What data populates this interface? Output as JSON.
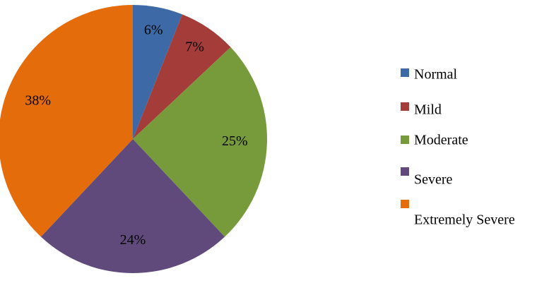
{
  "chart_data": {
    "type": "pie",
    "categories": [
      "Normal",
      "Mild",
      "Moderate",
      "Severe",
      "Extremely Severe"
    ],
    "values": [
      6,
      7,
      25,
      24,
      38
    ],
    "value_labels": [
      "6%",
      "7%",
      "25%",
      "24%",
      "38%"
    ],
    "colors": [
      "#3d6aa6",
      "#a43c3a",
      "#779b3b",
      "#604a7c",
      "#e46c0a"
    ],
    "legend": "right"
  }
}
